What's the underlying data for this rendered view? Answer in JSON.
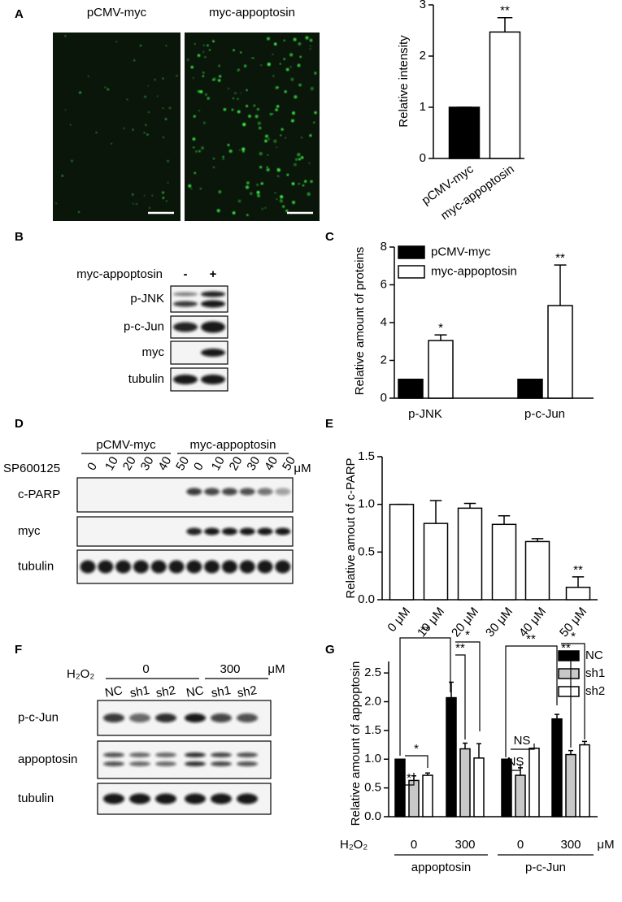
{
  "panel_labels": [
    "A",
    "B",
    "C",
    "D",
    "E",
    "F",
    "G"
  ],
  "panel_a": {
    "image_labels": [
      "pCMV-myc",
      "myc-appoptosin"
    ]
  },
  "blot_b": {
    "condition": "myc-appoptosin",
    "lanes": [
      "-",
      "+"
    ],
    "rows": [
      "p-JNK",
      "p-c-Jun",
      "myc",
      "tubulin"
    ]
  },
  "blot_d": {
    "groups": [
      "pCMV-myc",
      "myc-appoptosin"
    ],
    "treatment": "SP600125",
    "lanes": [
      "0",
      "10",
      "20",
      "30",
      "40",
      "50",
      "0",
      "10",
      "20",
      "30",
      "40",
      "50"
    ],
    "unit": "μM",
    "rows": [
      "c-PARP",
      "myc",
      "tubulin"
    ]
  },
  "blot_f": {
    "treatment": "H₂O₂",
    "groups": [
      "0",
      "300"
    ],
    "unit": "μM",
    "lanes": [
      "NC",
      "sh1",
      "sh2",
      "NC",
      "sh1",
      "sh2"
    ],
    "rows": [
      "p-c-Jun",
      "appoptosin",
      "tubulin"
    ]
  },
  "chart_data": [
    {
      "type": "bar",
      "ylabel": "Relative intensity",
      "categories": [
        "pCMV-myc",
        "myc-appoptosin"
      ],
      "values": [
        1,
        2.47
      ],
      "errors": [
        0,
        0.28
      ],
      "colors": [
        "#000000",
        "#ffffff"
      ],
      "ylim": [
        0,
        3
      ],
      "yticks": [
        0,
        1,
        2,
        3
      ],
      "annotations": [
        "**"
      ]
    },
    {
      "type": "bar",
      "ylabel": "Relative amount of proteins",
      "categories": [
        "p-JNK",
        "p-c-Jun"
      ],
      "series": [
        {
          "name": "pCMV-myc",
          "color": "#000000",
          "values": [
            1,
            1
          ]
        },
        {
          "name": "myc-appoptosin",
          "color": "#ffffff",
          "values": [
            3.05,
            4.9
          ],
          "errors": [
            0.3,
            2.15
          ]
        }
      ],
      "ylim": [
        0,
        8
      ],
      "yticks": [
        0,
        2,
        4,
        6,
        8
      ],
      "legend": "top-left",
      "annotations": [
        "*",
        "**"
      ]
    },
    {
      "type": "bar",
      "ylabel": "Relative amout of c-PARP",
      "categories": [
        "0 μM",
        "10 μM",
        "20 μM",
        "30 μM",
        "40 μM",
        "50 μM"
      ],
      "values": [
        1,
        0.8,
        0.96,
        0.79,
        0.61,
        0.13
      ],
      "errors": [
        0,
        0.24,
        0.05,
        0.09,
        0.03,
        0.11
      ],
      "color": "#ffffff",
      "ylim": [
        0,
        1.5
      ],
      "yticks": [
        {
          "value": 0,
          "label": "0.0"
        },
        {
          "value": 0.5,
          "label": "0.5"
        },
        {
          "value": 1,
          "label": "1.0"
        },
        {
          "value": 1.5,
          "label": "1.5"
        }
      ],
      "annotations": [
        "**"
      ]
    },
    {
      "type": "bar",
      "ylabel": "Relative amount of appoptosin",
      "x_prefix": "H₂O₂",
      "x_unit": "μM",
      "categories": [
        "0",
        "300",
        "0",
        "300"
      ],
      "groups": [
        "appoptosin",
        "p-c-Jun"
      ],
      "series": [
        {
          "name": "NC",
          "color": "#000000",
          "values": [
            1,
            2.07,
            1,
            1.7
          ],
          "errors": [
            0,
            0.27,
            0,
            0.08
          ]
        },
        {
          "name": "sh1",
          "color": "#c8c8c8",
          "values": [
            0.63,
            1.18,
            0.72,
            1.08
          ],
          "errors": [
            0.08,
            0.1,
            0.13,
            0.07
          ]
        },
        {
          "name": "sh2",
          "color": "#ffffff",
          "values": [
            0.72,
            1.02,
            1.19,
            1.25
          ],
          "errors": [
            0.04,
            0.25,
            0,
            0.06
          ]
        }
      ],
      "ylim": [
        0,
        2.7
      ],
      "yticks": [
        {
          "value": 0,
          "label": "0.0"
        },
        {
          "value": 0.5,
          "label": "0.5"
        },
        {
          "value": 1,
          "label": "1.0"
        },
        {
          "value": 1.5,
          "label": "1.5"
        },
        {
          "value": 2,
          "label": "2.0"
        },
        {
          "value": 2.5,
          "label": "2.5"
        }
      ],
      "legend": "top-right",
      "annotations": [
        "**",
        "*",
        "*",
        "**",
        "*",
        "**",
        "NS",
        "NS",
        "**",
        "*"
      ]
    }
  ]
}
